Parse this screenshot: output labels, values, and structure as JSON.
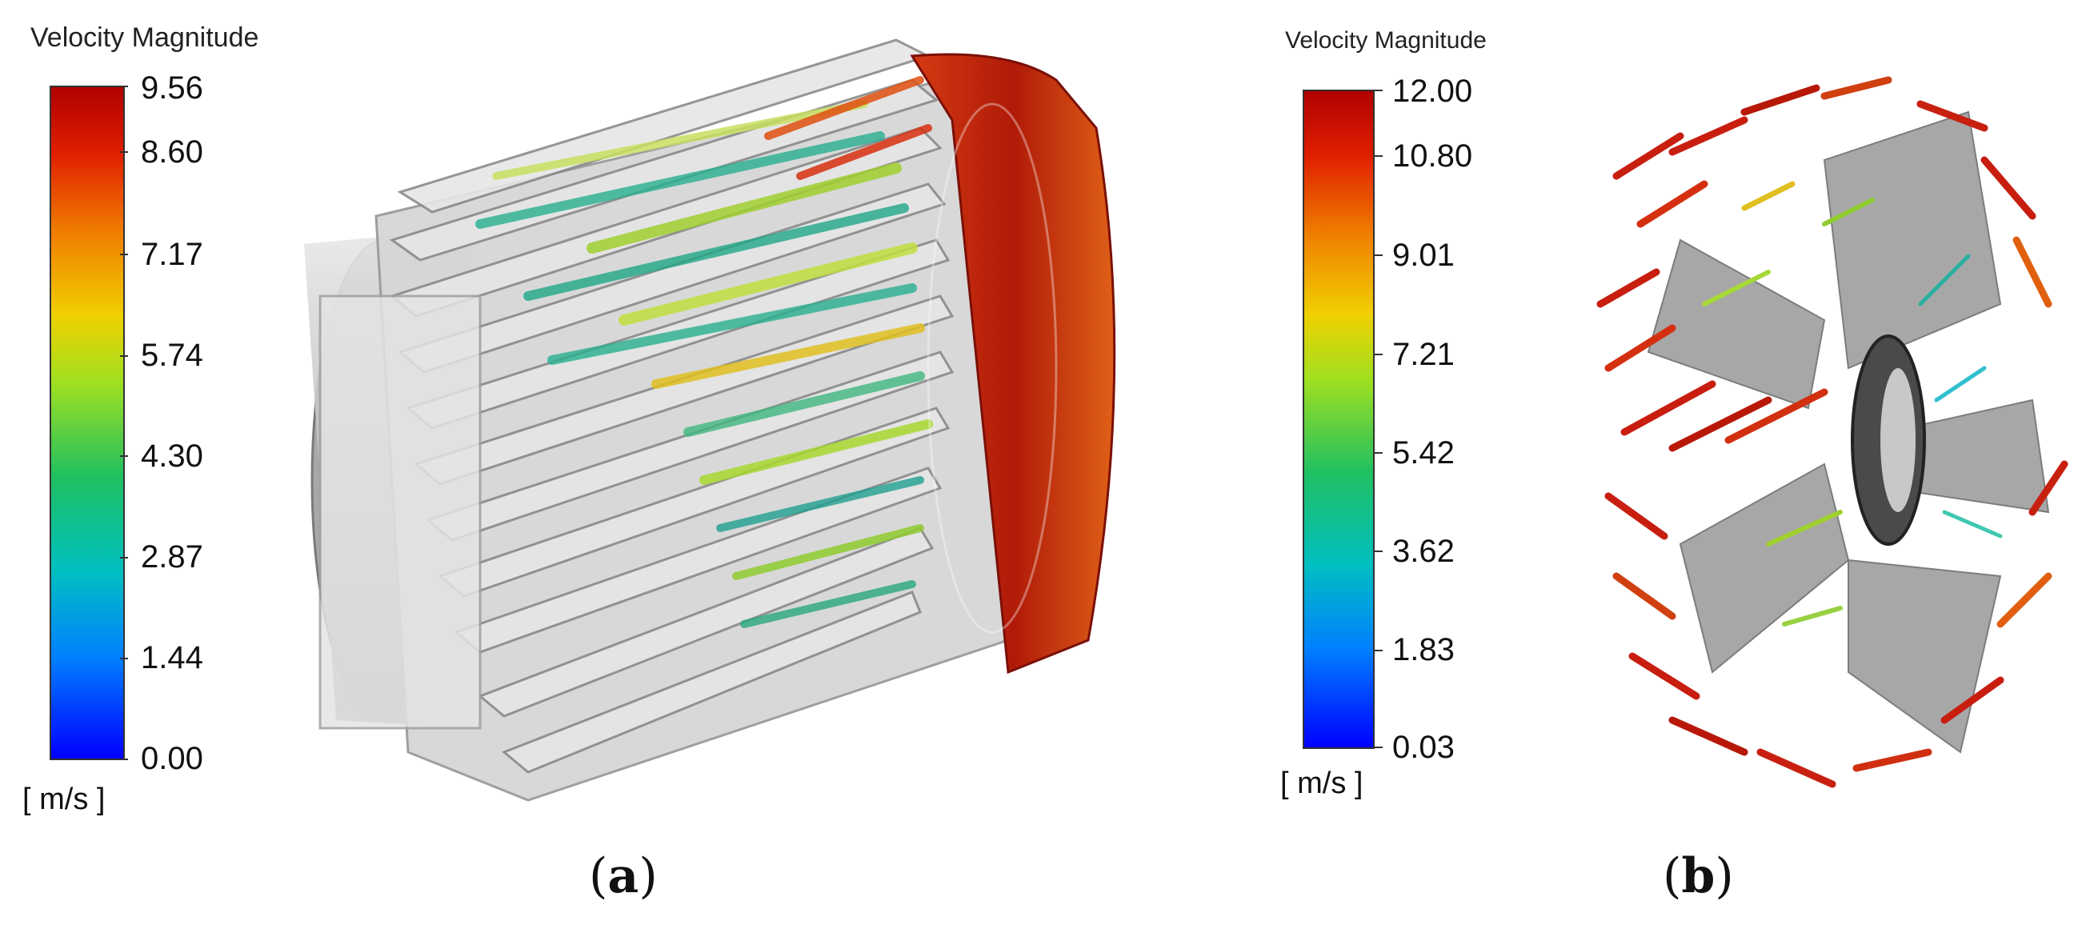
{
  "panel_a": {
    "colorbar": {
      "title": "Velocity Magnitude",
      "ticks": [
        "9.56",
        "8.60",
        "7.17",
        "5.74",
        "4.30",
        "2.87",
        "1.44",
        "0.00"
      ],
      "units": "[ m/s ]"
    },
    "caption_letter": "a"
  },
  "panel_b": {
    "colorbar": {
      "title": "Velocity Magnitude",
      "ticks": [
        "12.00",
        "10.80",
        "9.01",
        "7.21",
        "5.42",
        "3.62",
        "1.83",
        "0.03"
      ],
      "units": "[ m/s ]"
    },
    "caption_letter": "b"
  },
  "colors": {
    "housing": "#c8c8c8",
    "fin": "#dcdcdc",
    "high_velocity": "#c81e10",
    "mid_velocity": "#9ad020",
    "low_velocity": "#18a890"
  }
}
